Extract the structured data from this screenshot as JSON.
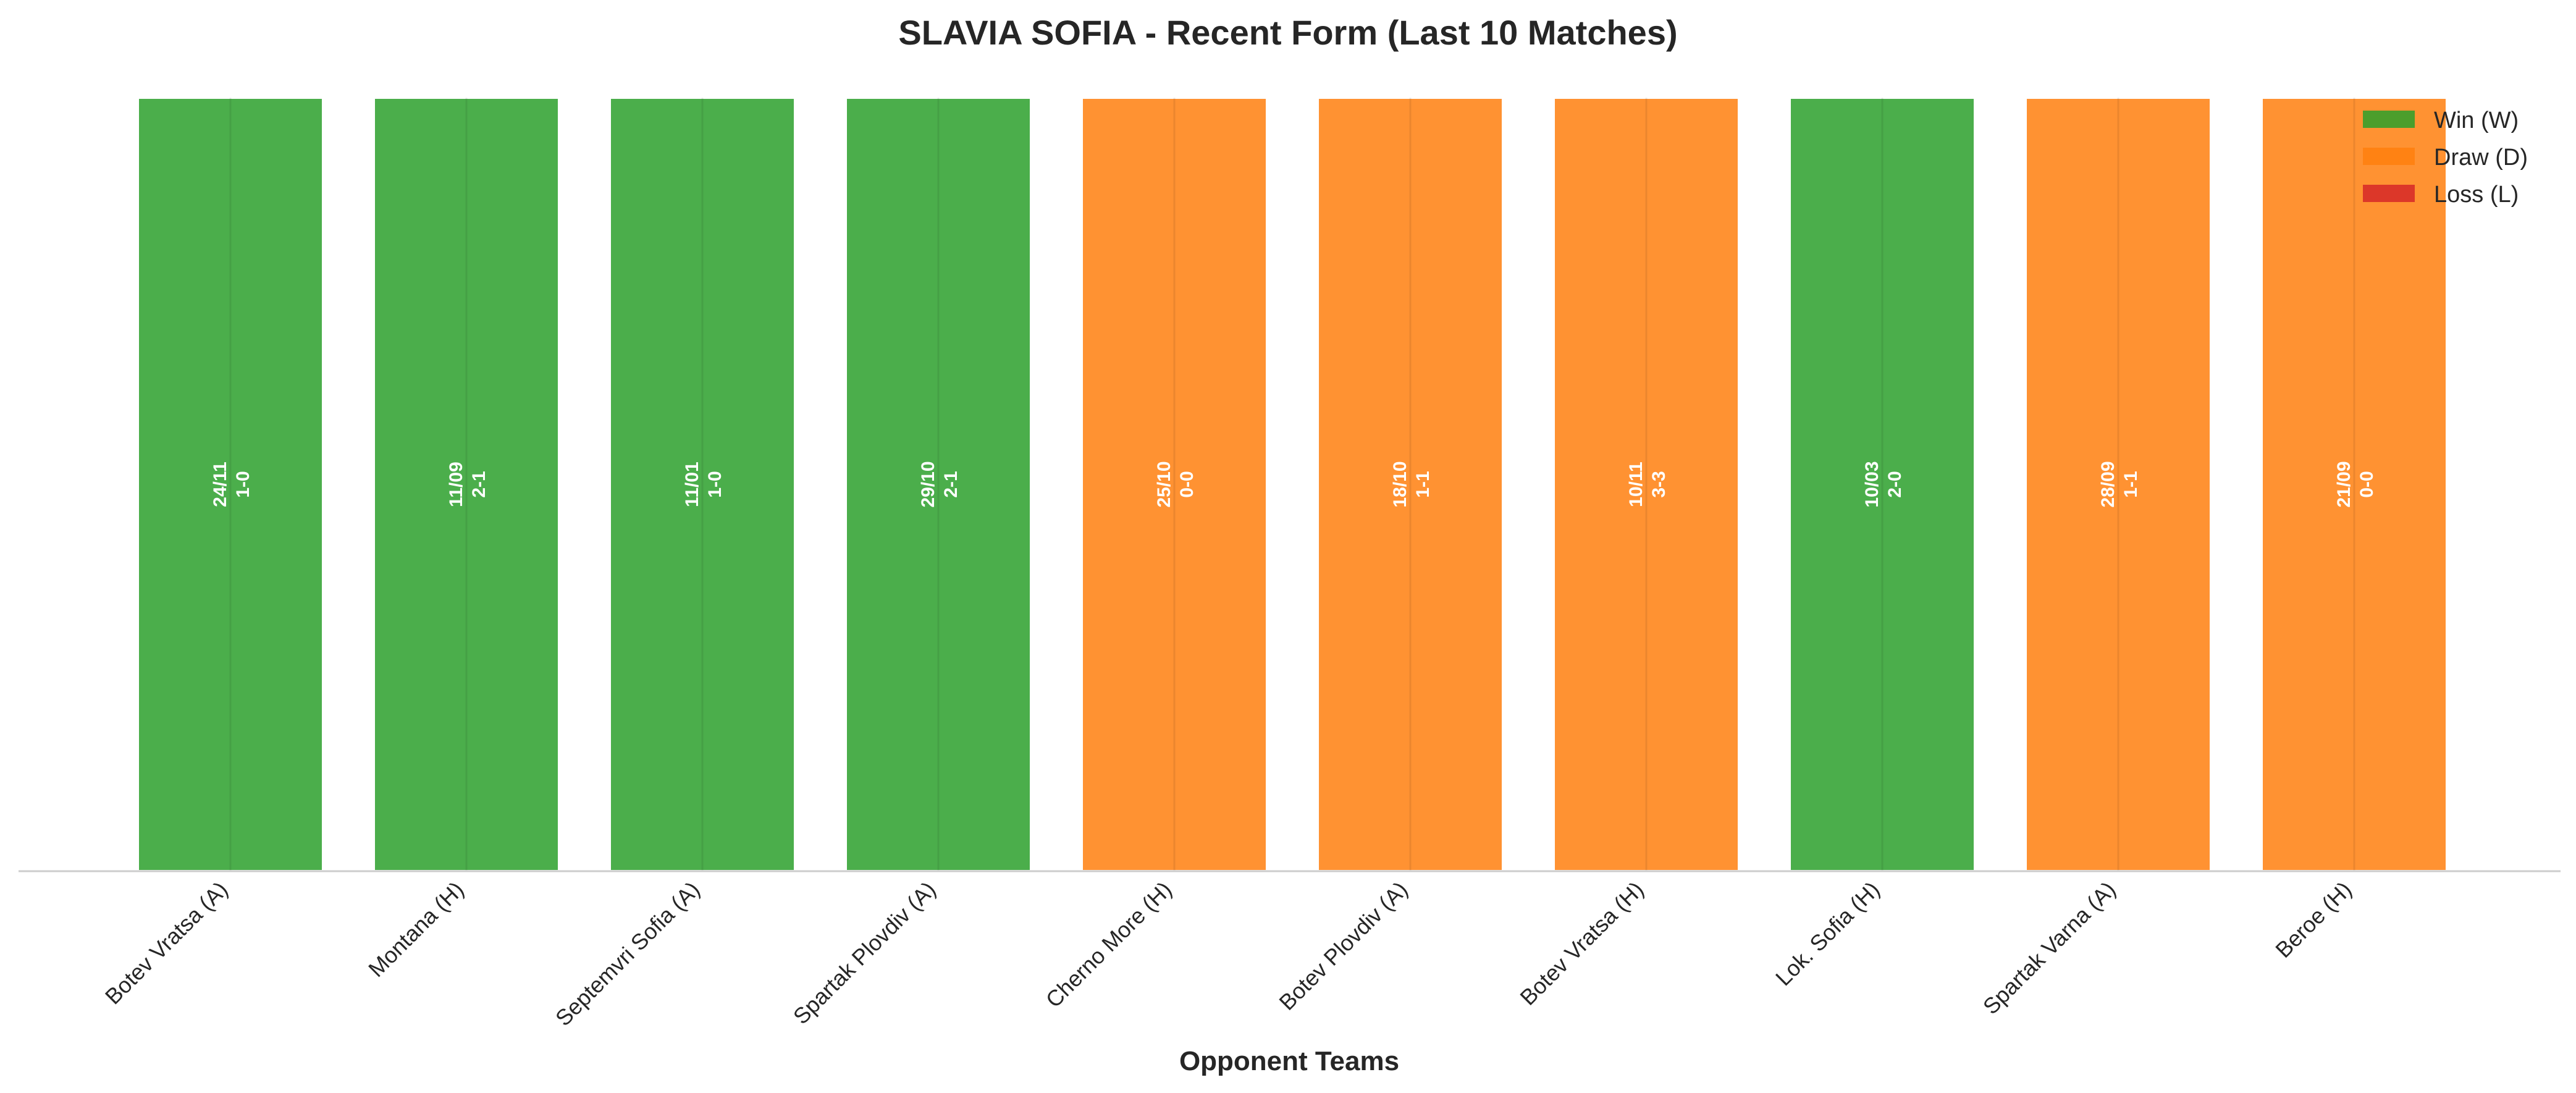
{
  "chart_data": {
    "type": "bar",
    "title": "SLAVIA SOFIA - Recent Form (Last 10 Matches)",
    "xlabel": "Opponent Teams",
    "ylabel": "",
    "ylim": [
      0,
      1
    ],
    "grid": false,
    "legend_position": "top-right",
    "categories": [
      "Botev Vratsa (A)",
      "Montana (H)",
      "Septemvri Sofia (A)",
      "Spartak Plovdiv (A)",
      "Cherno More (H)",
      "Botev Plovdiv (A)",
      "Botev Vratsa (H)",
      "Lok. Sofia (H)",
      "Spartak Varna (A)",
      "Beroe (H)"
    ],
    "values": [
      1,
      1,
      1,
      1,
      1,
      1,
      1,
      1,
      1,
      1
    ],
    "results": [
      "W",
      "W",
      "W",
      "W",
      "D",
      "D",
      "D",
      "W",
      "D",
      "D"
    ],
    "dates": [
      "24/11",
      "11/09",
      "11/01",
      "29/10",
      "25/10",
      "18/10",
      "10/11",
      "10/03",
      "28/09",
      "21/09"
    ],
    "scores": [
      "1-0",
      "2-1",
      "1-0",
      "2-1",
      "0-0",
      "1-1",
      "3-3",
      "2-0",
      "1-1",
      "0-0"
    ],
    "legend": [
      {
        "key": "W",
        "label": "Win (W)",
        "color": "#2ca02c"
      },
      {
        "key": "D",
        "label": "Draw (D)",
        "color": "#ff7f0e"
      },
      {
        "key": "L",
        "label": "Loss (L)",
        "color": "#d62728"
      }
    ]
  }
}
